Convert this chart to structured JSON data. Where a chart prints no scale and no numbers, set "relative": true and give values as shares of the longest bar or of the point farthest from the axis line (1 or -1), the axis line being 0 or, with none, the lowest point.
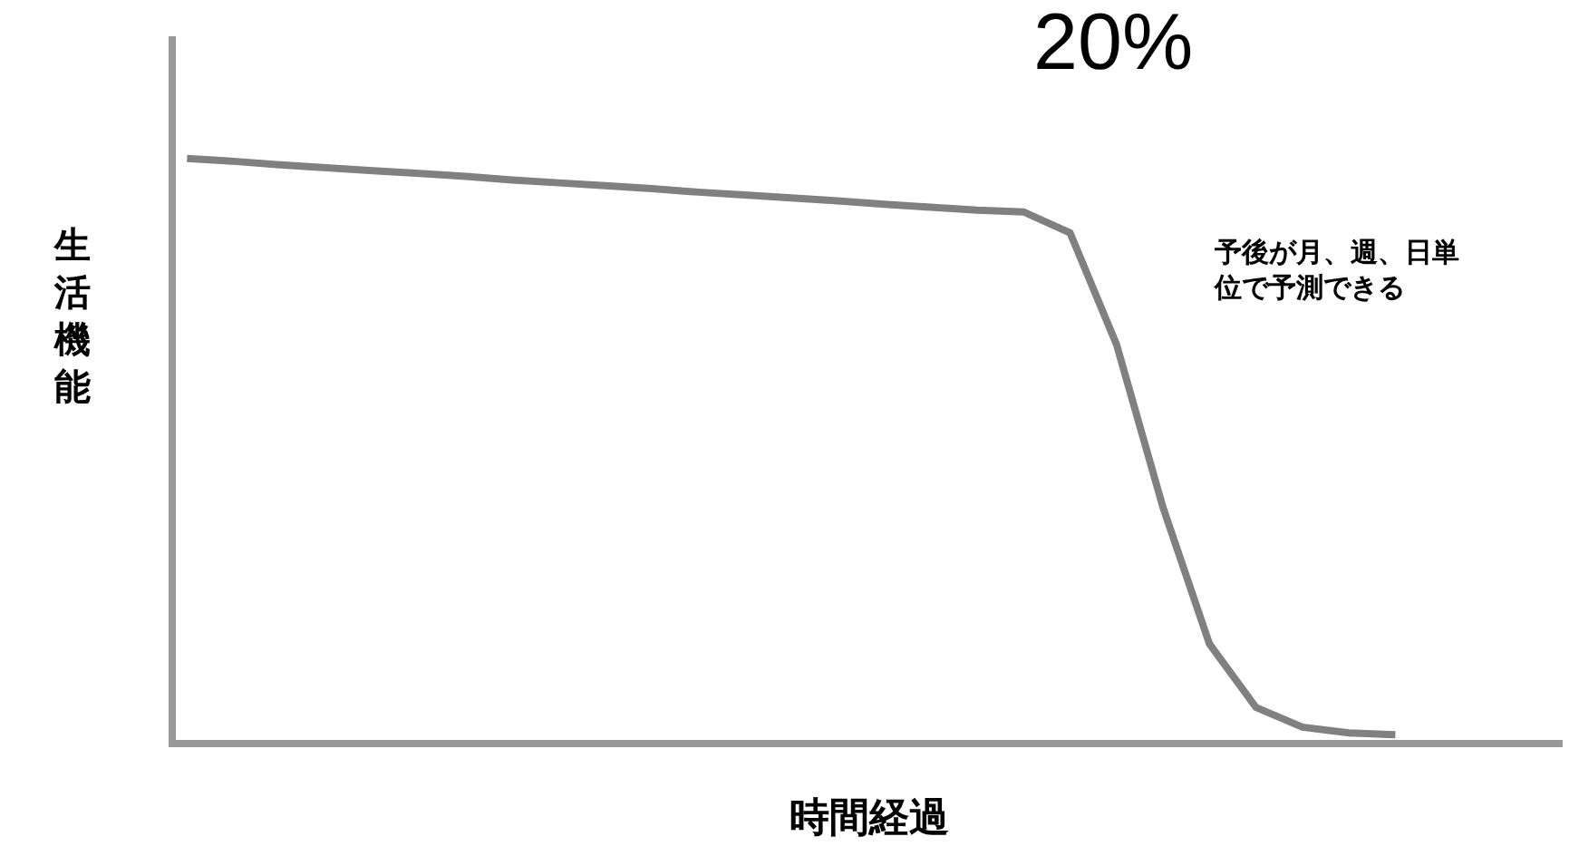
{
  "chart_data": {
    "type": "line",
    "title": "20%",
    "xlabel": "時間経過",
    "ylabel": "生活機能",
    "relative": true,
    "marker": "none",
    "line_style": "solid",
    "annotations": [
      "予後が月、週、日単位で予測できる"
    ],
    "categories": [
      null,
      null,
      null,
      null,
      null,
      null,
      null,
      null,
      null,
      null,
      null,
      null,
      null,
      null,
      null,
      null,
      null,
      null,
      null,
      null,
      null,
      null,
      null,
      null,
      null,
      null,
      null
    ],
    "series": [
      {
        "color": "#808080",
        "values": [
          1.0,
          0.995,
          0.989,
          0.984,
          0.979,
          0.974,
          0.969,
          0.963,
          0.958,
          0.953,
          0.948,
          0.942,
          0.937,
          0.932,
          0.927,
          0.921,
          0.916,
          0.911,
          0.908,
          0.872,
          0.68,
          0.4,
          0.165,
          0.056,
          0.022,
          0.012,
          0.009
        ]
      }
    ]
  }
}
